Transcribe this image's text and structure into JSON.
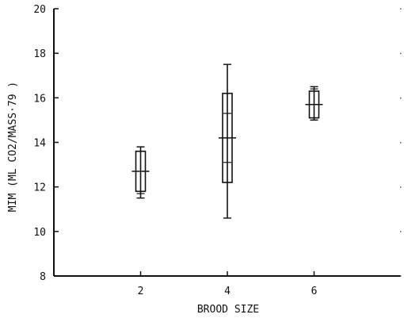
{
  "chart_data": {
    "type": "box",
    "xlabel": "BROOD SIZE",
    "ylabel": "MIM  (ML CO2/MASS·79 )",
    "xlim": [
      0,
      8
    ],
    "ylim": [
      8,
      20
    ],
    "x_ticks": [
      2,
      4,
      6
    ],
    "y_ticks": [
      8,
      10,
      12,
      14,
      16,
      18,
      20
    ],
    "grid": false,
    "boxes": [
      {
        "x": 2,
        "median": 12.7,
        "q1": 11.8,
        "q3": 13.6,
        "min": 11.5,
        "max": 13.8,
        "extra_ticks": [
          11.7,
          13.8
        ]
      },
      {
        "x": 4,
        "median": 14.2,
        "q1": 12.2,
        "q3": 16.2,
        "min": 10.6,
        "max": 17.5,
        "extra_ticks": [
          13.1,
          15.3
        ]
      },
      {
        "x": 6,
        "median": 15.7,
        "q1": 15.1,
        "q3": 16.3,
        "min": 15.0,
        "max": 16.5,
        "extra_ticks": [
          15.0,
          16.4
        ]
      }
    ]
  }
}
